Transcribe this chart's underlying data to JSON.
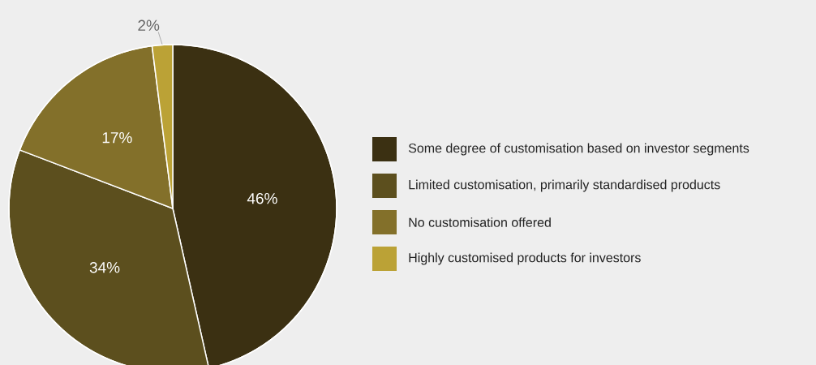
{
  "chart_data": {
    "type": "pie",
    "categories": [
      "Some degree of customisation based on investor segments",
      "Limited customisation, primarily standardised products",
      "No customisation offered",
      "Highly customised products for investors"
    ],
    "values": [
      46,
      34,
      17,
      2
    ],
    "colors": [
      "#3b3012",
      "#5c4f1e",
      "#83702a",
      "#bba236"
    ],
    "data_labels": true,
    "value_labels": [
      "46%",
      "34%",
      "17%",
      "2%"
    ],
    "legend": "right"
  }
}
